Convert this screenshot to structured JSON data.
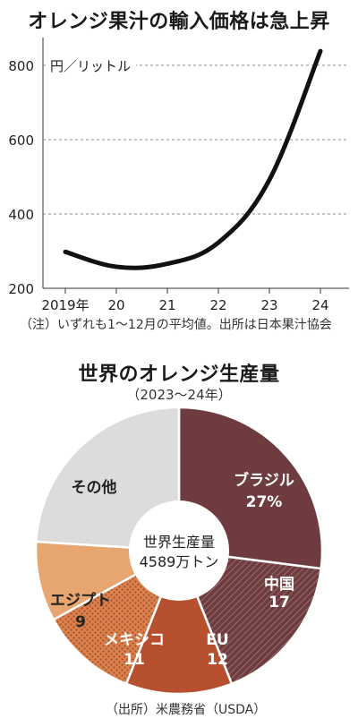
{
  "chart_data": [
    {
      "type": "line",
      "title": "オレンジ果汁の輸入価格は急上昇",
      "unit_label": "円／リットル",
      "categories": [
        "2019年",
        "20",
        "21",
        "22",
        "23",
        "24"
      ],
      "series": [
        {
          "values": [
            298,
            258,
            266,
            323,
            492,
            838
          ]
        }
      ],
      "yticks": [
        "200",
        "400",
        "600",
        "800"
      ],
      "ylim": [
        200,
        860
      ],
      "grid": true,
      "note": "（注）いずれも1～12月の平均値。出所は日本果汁協会",
      "line_color": "#111111"
    },
    {
      "type": "pie",
      "title": "世界のオレンジ生産量",
      "subtitle": "（2023～24年）",
      "center_label_1": "世界生産量",
      "center_label_2": "4589万トン",
      "slices": [
        {
          "label": "ブラジル",
          "value_text": "27%",
          "value": 27,
          "color": "#6e3c3e",
          "text_color": "#ffffff"
        },
        {
          "label": "中国",
          "value_text": "17",
          "value": 17,
          "color": "#7a4a4a",
          "text_color": "#ffffff",
          "pattern": "hatch"
        },
        {
          "label": "EU",
          "value_text": "12",
          "value": 12,
          "color": "#b7502f",
          "text_color": "#ffffff"
        },
        {
          "label": "メキシコ",
          "value_text": "11",
          "value": 11,
          "color": "#d9824d",
          "text_color": "#ffffff",
          "pattern": "dots"
        },
        {
          "label": "エジプト",
          "value_text": "9",
          "value": 9,
          "color": "#e7a66f",
          "text_color": "#222222"
        },
        {
          "label": "その他",
          "value_text": "",
          "value": 24,
          "color": "#dcdcdc",
          "text_color": "#222222"
        }
      ],
      "source": "（出所）米農務省（USDA）"
    }
  ]
}
